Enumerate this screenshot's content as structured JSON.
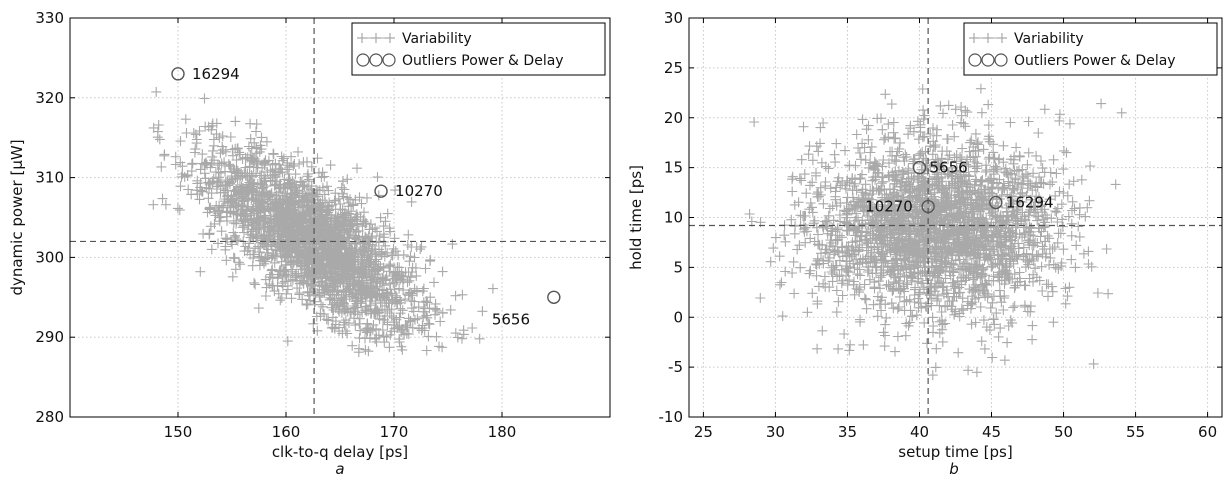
{
  "chart_data": [
    {
      "type": "scatter",
      "panel_label": "a",
      "xlabel": "clk-to-q delay [ps]",
      "ylabel": "dynamic power [μW]",
      "xlim": [
        140,
        190
      ],
      "ylim": [
        280,
        330
      ],
      "xticks": [
        150,
        160,
        170,
        180
      ],
      "yticks": [
        280,
        290,
        300,
        310,
        320,
        330
      ],
      "grid": true,
      "legend": {
        "placement": "top-right",
        "entries": [
          "Variability",
          "Outliers Power & Delay"
        ]
      },
      "variability_cloud": {
        "distribution": "correlated gaussian",
        "mean": [
          162.5,
          302
        ],
        "sd": [
          4.6,
          5.4
        ],
        "correlation": -0.72,
        "x_range": [
          146,
          180
        ],
        "y_range": [
          288,
          321
        ]
      },
      "reference_lines": {
        "x": 162.6,
        "y": 302
      },
      "outliers": [
        {
          "label": "16294",
          "x": 150,
          "y": 323
        },
        {
          "label": "10270",
          "x": 168.8,
          "y": 308.3
        },
        {
          "label": "5656",
          "x": 184.8,
          "y": 295
        }
      ],
      "colors": {
        "variability": "#a9a9a9",
        "outlier": "#555555",
        "reference": "#555555",
        "grid": "#c8c8c8"
      }
    },
    {
      "type": "scatter",
      "panel_label": "b",
      "xlabel": "setup time [ps]",
      "ylabel": "hold time [ps]",
      "xlim": [
        24,
        61
      ],
      "ylim": [
        -10,
        30
      ],
      "xticks": [
        25,
        30,
        35,
        40,
        45,
        50,
        55,
        60
      ],
      "yticks": [
        -10,
        -5,
        0,
        5,
        10,
        15,
        20,
        25,
        30
      ],
      "grid": true,
      "legend": {
        "placement": "top-right",
        "entries": [
          "Variability",
          "Outliers Power & Delay"
        ]
      },
      "variability_cloud": {
        "distribution": "gaussian",
        "mean": [
          41,
          9
        ],
        "sd": [
          4.1,
          4.1
        ],
        "correlation": 0,
        "x_range": [
          28,
          56
        ],
        "y_range": [
          -6.5,
          24.5
        ]
      },
      "reference_lines": {
        "x": 40.6,
        "y": 9.2
      },
      "outliers": [
        {
          "label": "5656",
          "x": 40,
          "y": 15
        },
        {
          "label": "10270",
          "x": 40.6,
          "y": 11.1
        },
        {
          "label": "16294",
          "x": 45.3,
          "y": 11.5
        }
      ],
      "colors": {
        "variability": "#a9a9a9",
        "outlier": "#555555",
        "reference": "#555555",
        "grid": "#c8c8c8"
      }
    }
  ]
}
